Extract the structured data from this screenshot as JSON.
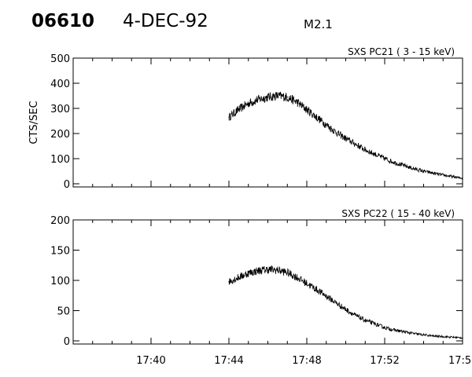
{
  "header": {
    "event_id": "06610",
    "date": "4-DEC-92",
    "flare_class": "M2.1"
  },
  "chart_data": [
    {
      "type": "line",
      "title": "SXS PC21  (  3 - 15 keV)",
      "xlabel": "",
      "ylabel": "CTS/SEC",
      "xlim": [
        "17:36",
        "17:56"
      ],
      "ylim": [
        0,
        500
      ],
      "yticks": [
        0,
        100,
        200,
        300,
        400,
        500
      ],
      "xticks": [
        "17:40",
        "17:44",
        "17:48",
        "17:52",
        "17:5"
      ],
      "grid": false,
      "series": [
        {
          "x": [
            "17:44:00",
            "17:44:30",
            "17:45:00",
            "17:45:30",
            "17:46:00",
            "17:46:30",
            "17:47:00",
            "17:47:30",
            "17:48:00",
            "17:48:30",
            "17:49:00",
            "17:49:30",
            "17:50:00",
            "17:50:30",
            "17:51:00",
            "17:51:30",
            "17:52:00",
            "17:52:30",
            "17:53:00",
            "17:53:30",
            "17:54:00",
            "17:54:30",
            "17:55:00",
            "17:55:30",
            "17:56:00"
          ],
          "values": [
            265,
            295,
            320,
            335,
            345,
            350,
            345,
            325,
            295,
            265,
            235,
            205,
            180,
            158,
            135,
            118,
            100,
            85,
            72,
            60,
            50,
            42,
            35,
            28,
            22
          ]
        }
      ]
    },
    {
      "type": "line",
      "title": "SXS PC22  ( 15 - 40 keV)",
      "xlabel": "",
      "ylabel": "",
      "xlim": [
        "17:36",
        "17:56"
      ],
      "ylim": [
        0,
        200
      ],
      "yticks": [
        0,
        50,
        100,
        150,
        200
      ],
      "xticks": [
        "17:40",
        "17:44",
        "17:48",
        "17:52",
        "17:5"
      ],
      "grid": false,
      "series": [
        {
          "x": [
            "17:44:00",
            "17:44:30",
            "17:45:00",
            "17:45:30",
            "17:46:00",
            "17:46:30",
            "17:47:00",
            "17:47:30",
            "17:48:00",
            "17:48:30",
            "17:49:00",
            "17:49:30",
            "17:50:00",
            "17:50:30",
            "17:51:00",
            "17:51:30",
            "17:52:00",
            "17:52:30",
            "17:53:00",
            "17:53:30",
            "17:54:00",
            "17:54:30",
            "17:55:00",
            "17:55:30",
            "17:56:00"
          ],
          "values": [
            98,
            105,
            112,
            116,
            118,
            117,
            113,
            105,
            95,
            85,
            74,
            63,
            52,
            42,
            34,
            28,
            22,
            18,
            15,
            12,
            10,
            8,
            7,
            6,
            5
          ]
        }
      ]
    }
  ]
}
